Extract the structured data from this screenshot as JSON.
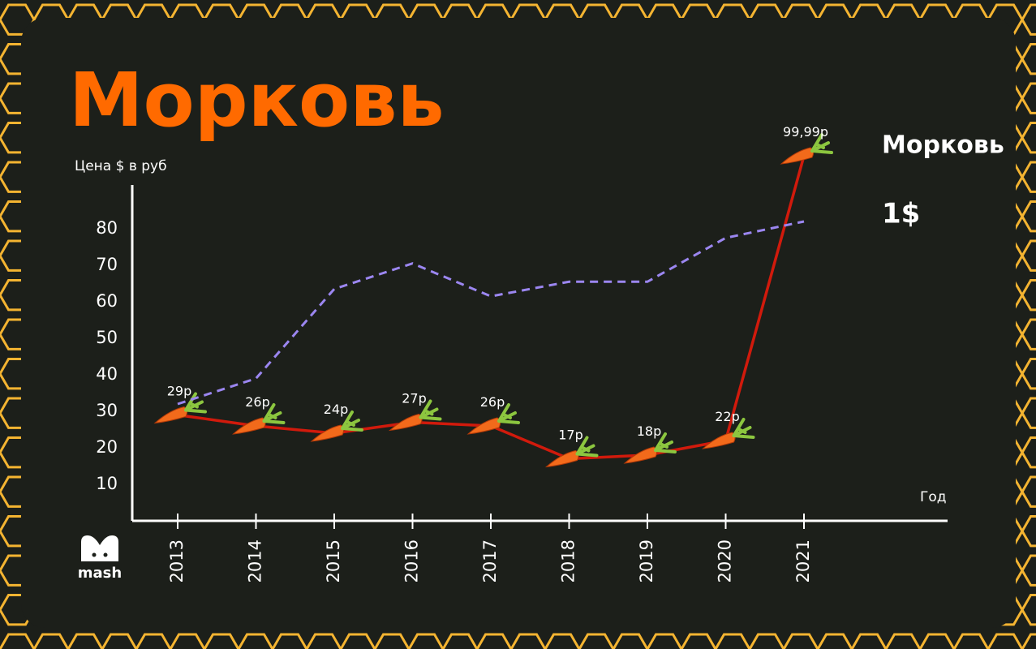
{
  "chart_data": {
    "type": "line",
    "title": "Морковь",
    "y_label": "Цена $ в руб",
    "x_label": "Год",
    "logo": "mash",
    "categories": [
      "2013",
      "2014",
      "2015",
      "2016",
      "2017",
      "2018",
      "2019",
      "2020",
      "2021"
    ],
    "ylim": [
      0,
      92
    ],
    "yticks": [
      10,
      20,
      30,
      40,
      50,
      60,
      70,
      80
    ],
    "series": [
      {
        "name": "Морковь",
        "color": "#d11a0c",
        "marker": "carrot",
        "values": [
          29,
          26,
          24,
          27,
          26,
          17,
          18,
          22,
          99.99
        ],
        "value_labels": [
          "29р",
          "26р",
          "24р",
          "27р",
          "26р",
          "17р",
          "18р",
          "22р",
          "99,99р"
        ]
      },
      {
        "name": "1$",
        "color": "#9b86f0",
        "dashed": true,
        "values": [
          32,
          39,
          63.5,
          70.5,
          61.5,
          65.5,
          65.5,
          77.5,
          82
        ]
      }
    ]
  }
}
